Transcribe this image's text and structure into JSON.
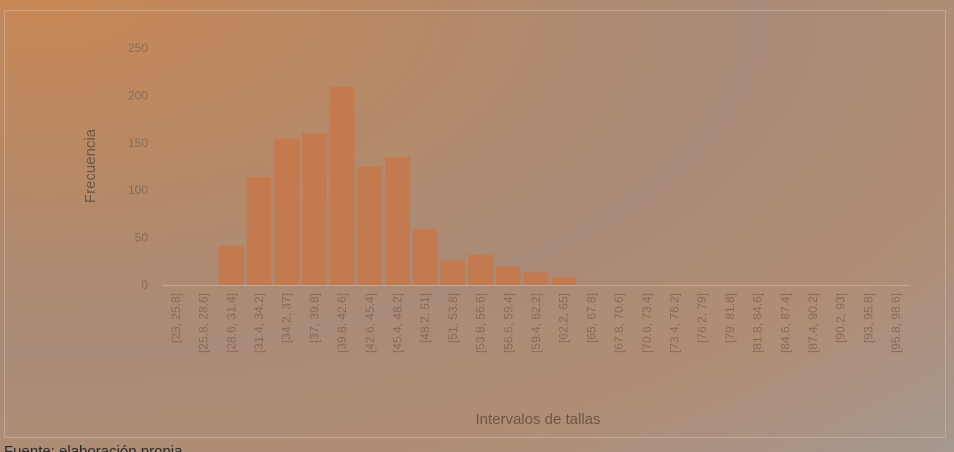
{
  "chart_data": {
    "type": "bar",
    "title": "",
    "xlabel": "Intervalos de tallas",
    "ylabel": "Frecuencia",
    "ylim": [
      0,
      250
    ],
    "yticks": [
      "0",
      "50",
      "100",
      "150",
      "200",
      "250"
    ],
    "grid": false,
    "categories": [
      "[23, 25.8]",
      "[25.8, 28.6]",
      "[28.6, 31.4]",
      "[31.4, 34.2]",
      "[34.2, 37]",
      "[37, 39.8]",
      "[39.8, 42.6]",
      "[42.6, 45.4]",
      "[45.4, 48.2]",
      "[48.2, 51]",
      "[51, 53.8]",
      "[53.8, 56.6]",
      "[56.6, 59.4]",
      "[59.4, 62.2]",
      "[62.2, 65]",
      "[65, 67.8]",
      "[67.8, 70.6]",
      "[70.6, 73.4]",
      "[73.4, 76.2]",
      "[76.2, 79]",
      "[79, 81.8]",
      "[81.8, 84.6]",
      "[84.6, 87.4]",
      "[87.4, 90.2]",
      "[90.2, 93]",
      "[93, 95.8]",
      "[95.8, 98.6]"
    ],
    "values": [
      0,
      0,
      41,
      114,
      154,
      160,
      209,
      125,
      135,
      59,
      26,
      32,
      19,
      13,
      8,
      0,
      0,
      0,
      0,
      0,
      0,
      0,
      0,
      0,
      0,
      0,
      0
    ],
    "bar_color": "#c27a4e"
  },
  "caption": "Fuente: elaboración propia"
}
